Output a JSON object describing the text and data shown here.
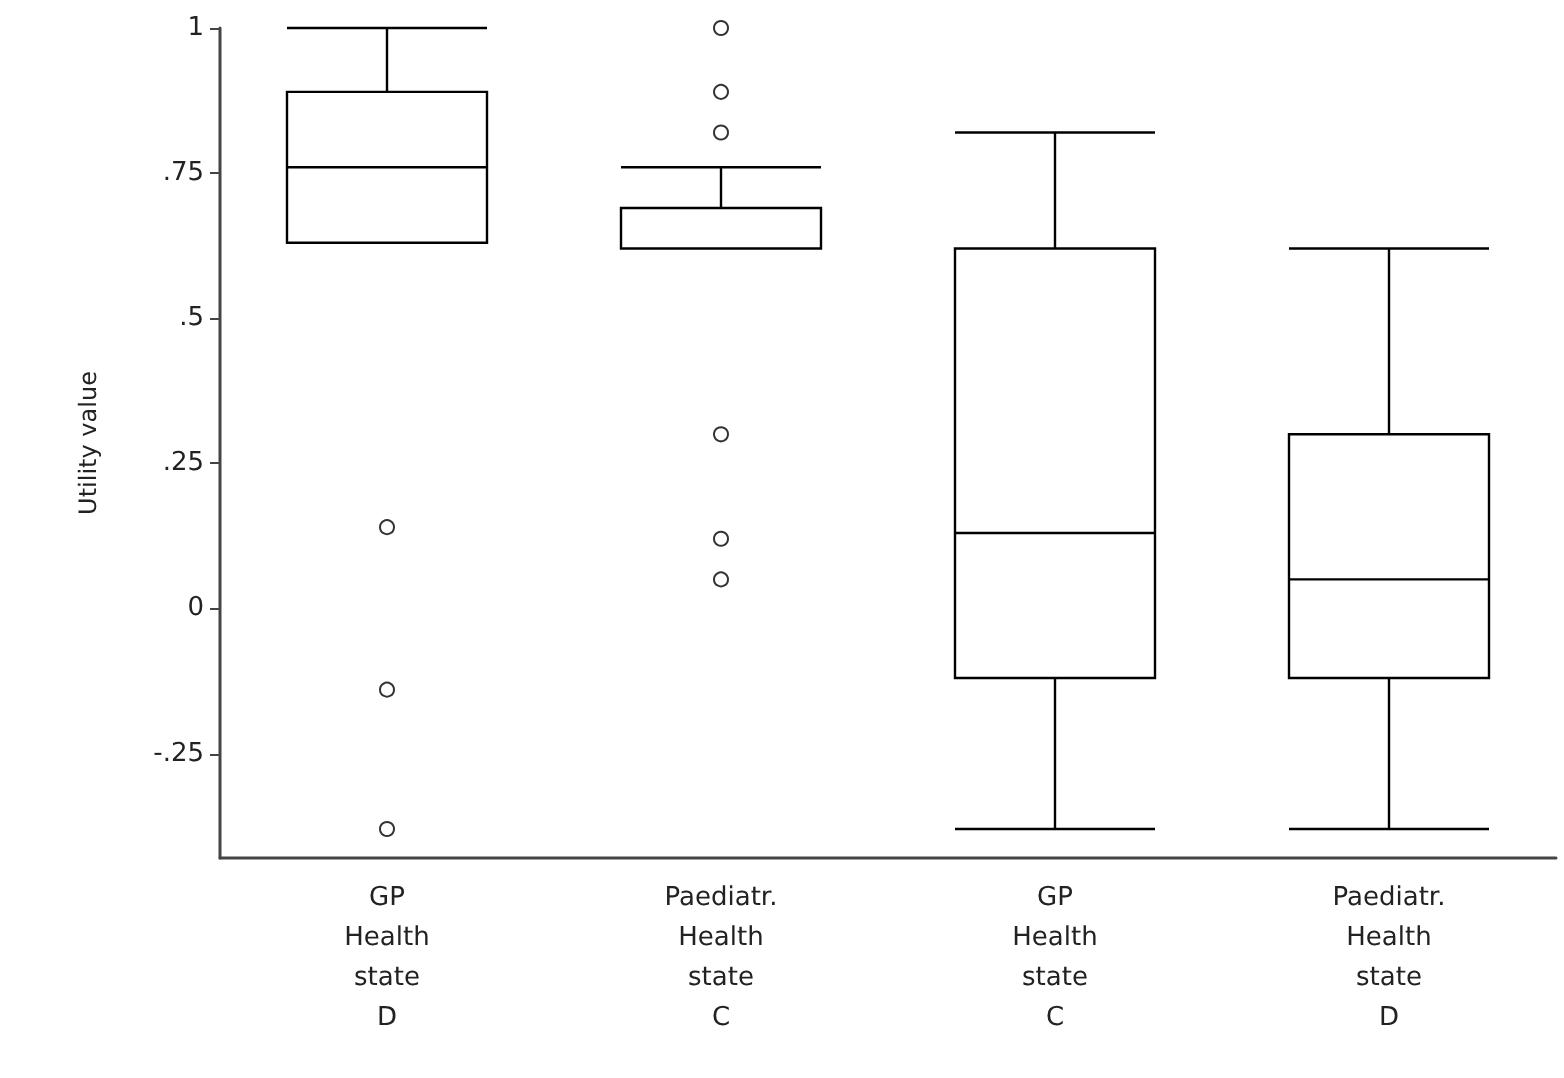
{
  "chart_data": {
    "type": "box",
    "ylabel": "Utility value",
    "categories": [
      "GP\nHealth\nstate\nD",
      "Paediatr.\nHealth\nstate\nC",
      "GP\nHealth\nstate\nC",
      "Paediatr.\nHealth\nstate\nD"
    ],
    "boxes": [
      {
        "low": 0.63,
        "q1": 0.63,
        "median": 0.76,
        "q3": 0.89,
        "high": 1.0,
        "outliers": [
          0.14,
          -0.14,
          -0.38
        ]
      },
      {
        "low": 0.62,
        "q1": 0.62,
        "median": 0.62,
        "q3": 0.69,
        "high": 0.76,
        "outliers": [
          1.0,
          0.89,
          0.82,
          0.3,
          0.12,
          0.05
        ]
      },
      {
        "low": -0.38,
        "q1": -0.12,
        "median": 0.13,
        "q3": 0.62,
        "high": 0.82
      },
      {
        "low": -0.38,
        "q1": -0.12,
        "median": 0.05,
        "q3": 0.3,
        "high": 0.62
      }
    ],
    "color": "#000000",
    "ylim": [
      -0.43,
      1
    ],
    "yticks": [
      {
        "value": -0.25,
        "label": "-.25"
      },
      0,
      {
        "value": 0.25,
        "label": ".25"
      },
      {
        "value": 0.5,
        "label": ".5"
      },
      {
        "value": 0.75,
        "label": ".75"
      },
      1
    ],
    "marker": "circle"
  }
}
